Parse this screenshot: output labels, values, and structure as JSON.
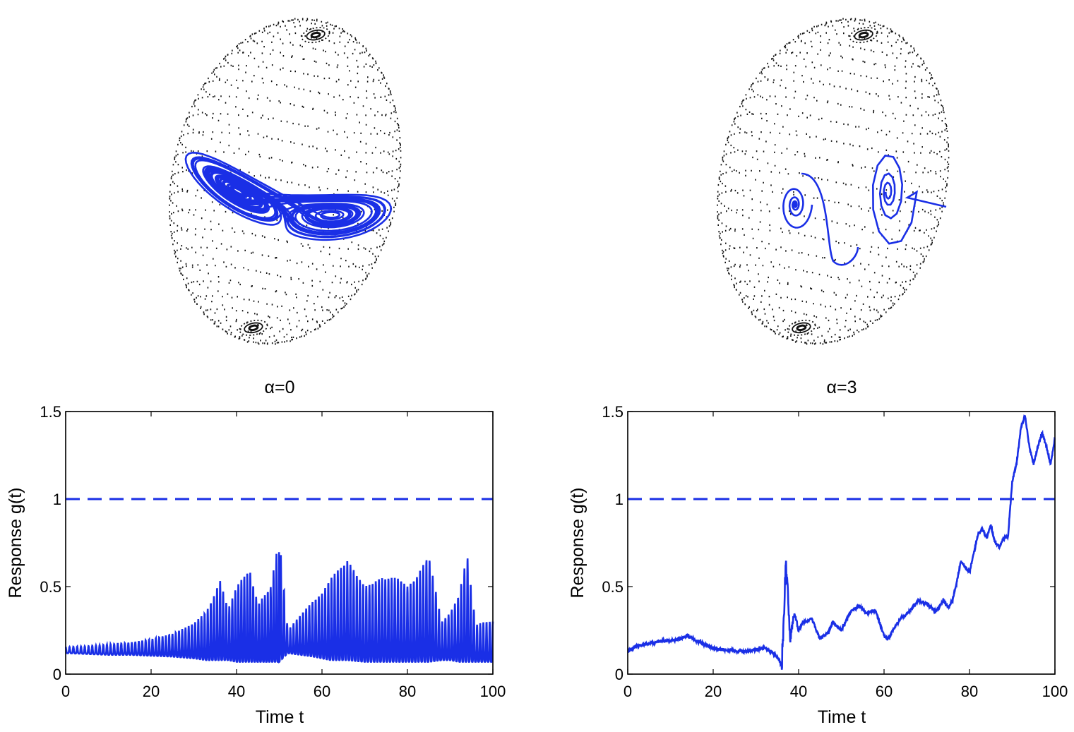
{
  "colors": {
    "series": "#1a2fe6",
    "axes": "#000000",
    "dots": "#111111",
    "background": "#ffffff"
  },
  "chart_data": [
    {
      "type": "scatter",
      "panel": "sphere-left",
      "description_marks": [
        "dotted-sphere",
        "lorenz-trajectory"
      ],
      "attractor": "two-lobe (butterfly)"
    },
    {
      "type": "scatter",
      "panel": "sphere-right",
      "description_marks": [
        "dotted-sphere",
        "trajectory-converging-to-fixed-points"
      ]
    },
    {
      "type": "line",
      "title": "α=0",
      "xlabel": "Time t",
      "ylabel": "Response  g(t)",
      "xlim": [
        0,
        100
      ],
      "ylim": [
        0,
        1.5
      ],
      "xticks": [
        "0",
        "20",
        "40",
        "60",
        "80",
        "100"
      ],
      "yticks": [
        "0",
        "0.5",
        "1",
        "1.5"
      ],
      "reference_line": {
        "y": 1,
        "style": "dashed"
      },
      "series": [
        {
          "x": [
            0,
            5,
            10,
            15,
            20,
            25,
            30,
            33,
            35,
            36,
            38,
            40,
            43,
            45,
            48,
            50,
            52,
            55,
            58,
            60,
            62,
            66,
            70,
            74,
            78,
            80,
            82,
            85,
            88,
            90,
            92,
            94,
            96,
            98,
            100
          ],
          "envelope_high": [
            0.155,
            0.16,
            0.17,
            0.18,
            0.2,
            0.23,
            0.29,
            0.36,
            0.46,
            0.55,
            0.37,
            0.5,
            0.6,
            0.4,
            0.5,
            0.78,
            0.25,
            0.34,
            0.42,
            0.46,
            0.55,
            0.65,
            0.5,
            0.55,
            0.55,
            0.5,
            0.55,
            0.68,
            0.3,
            0.35,
            0.45,
            0.68,
            0.28,
            0.3,
            0.3
          ],
          "envelope_low": [
            0.12,
            0.115,
            0.11,
            0.11,
            0.105,
            0.1,
            0.09,
            0.08,
            0.08,
            0.08,
            0.08,
            0.07,
            0.07,
            0.07,
            0.07,
            0.07,
            0.12,
            0.11,
            0.1,
            0.09,
            0.08,
            0.08,
            0.07,
            0.07,
            0.07,
            0.07,
            0.07,
            0.07,
            0.08,
            0.08,
            0.07,
            0.07,
            0.07,
            0.07,
            0.07
          ]
        }
      ]
    },
    {
      "type": "line",
      "title": "α=3",
      "xlabel": "Time t",
      "ylabel": "Response  g(t)",
      "xlim": [
        0,
        100
      ],
      "ylim": [
        0,
        1.5
      ],
      "xticks": [
        "0",
        "20",
        "40",
        "60",
        "80",
        "100"
      ],
      "yticks": [
        "0",
        "0.5",
        "1",
        "1.5"
      ],
      "reference_line": {
        "y": 1,
        "style": "dashed"
      },
      "series": [
        {
          "x": [
            0,
            2,
            4,
            6,
            8,
            10,
            12,
            14,
            16,
            18,
            20,
            22,
            24,
            26,
            28,
            30,
            32,
            34,
            35,
            36,
            36.5,
            37,
            37.5,
            38,
            39,
            40,
            41,
            42,
            43,
            45,
            47,
            48,
            50,
            52,
            54,
            56,
            58,
            60,
            61,
            62,
            64,
            66,
            68,
            70,
            72,
            74,
            75,
            76,
            77,
            78,
            80,
            82,
            83,
            84,
            85,
            86,
            87,
            88,
            89,
            90,
            91,
            92,
            93,
            94,
            95,
            96,
            97,
            98,
            99,
            100
          ],
          "y": [
            0.13,
            0.16,
            0.17,
            0.18,
            0.19,
            0.19,
            0.2,
            0.22,
            0.19,
            0.17,
            0.15,
            0.14,
            0.14,
            0.13,
            0.13,
            0.14,
            0.15,
            0.12,
            0.1,
            0.05,
            0.3,
            0.64,
            0.45,
            0.2,
            0.35,
            0.25,
            0.3,
            0.3,
            0.32,
            0.2,
            0.24,
            0.3,
            0.25,
            0.35,
            0.39,
            0.35,
            0.36,
            0.22,
            0.2,
            0.25,
            0.32,
            0.36,
            0.42,
            0.4,
            0.36,
            0.42,
            0.38,
            0.42,
            0.52,
            0.65,
            0.58,
            0.8,
            0.83,
            0.78,
            0.85,
            0.75,
            0.73,
            0.78,
            0.78,
            1.1,
            1.2,
            1.4,
            1.48,
            1.3,
            1.2,
            1.3,
            1.38,
            1.3,
            1.2,
            1.35
          ]
        }
      ]
    }
  ]
}
